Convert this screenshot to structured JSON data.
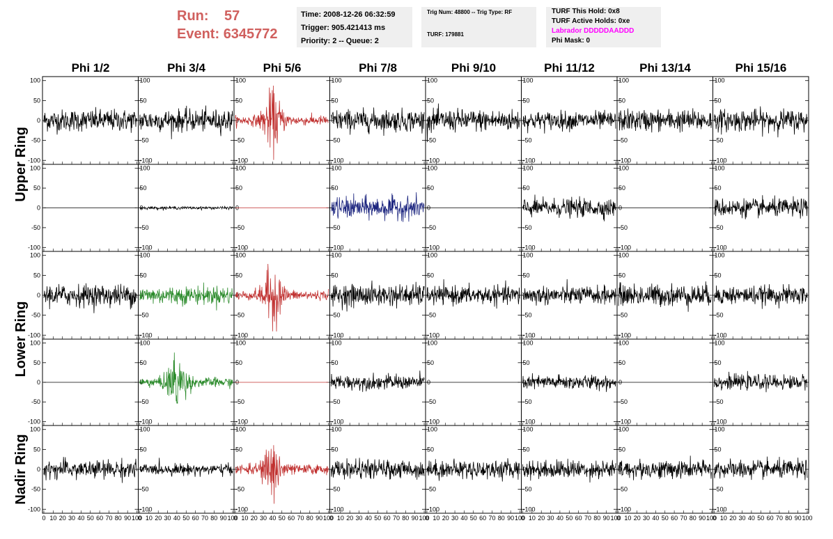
{
  "header": {
    "run_label": "Run:",
    "run_value": "57",
    "event_label": "Event:",
    "event_value": "6345772"
  },
  "info": {
    "time": "Time: 2008-12-26 06:32:59",
    "trigger": "Trigger: 905.421413 ms",
    "priority": "Priority: 2 -- Queue: 2",
    "trig_num": "Trig Num: 48800 -- Trig Type: RF",
    "turf": "TURF: 179881",
    "turf_this_hold": "TURF This Hold: 0x8",
    "turf_active_holds": "TURF Active Holds: 0xe",
    "labrador": "Labrador DDDDDAADDD",
    "phi_mask": "Phi Mask: 0"
  },
  "colors": {
    "red": "#c0302f",
    "green": "#2a8a2a",
    "blue": "#1a237e",
    "black": "#000000",
    "header_red": "#d0605e",
    "labrador": "#ff00ff"
  },
  "chart_data": {
    "type": "line",
    "columns": [
      "Phi 1/2",
      "Phi 3/4",
      "Phi 5/6",
      "Phi 7/8",
      "Phi 9/10",
      "Phi 11/12",
      "Phi 13/14",
      "Phi 15/16"
    ],
    "rings": [
      "Upper Ring",
      "Lower Ring",
      "Nadir Ring"
    ],
    "rows": [
      {
        "ring": "Upper Ring",
        "sub": 0
      },
      {
        "ring": "Upper Ring",
        "sub": 1
      },
      {
        "ring": "Lower Ring",
        "sub": 0
      },
      {
        "ring": "Lower Ring",
        "sub": 1
      },
      {
        "ring": "Nadir Ring",
        "sub": 0
      }
    ],
    "xlim": [
      0,
      100
    ],
    "ylim": [
      -110,
      110
    ],
    "x_ticks": [
      "0",
      "10",
      "20",
      "30",
      "40",
      "50",
      "60",
      "70",
      "80",
      "90",
      "100"
    ],
    "y_ticks": [
      "100",
      "50",
      "0",
      "-50",
      "-100"
    ],
    "panels": [
      [
        "black-30",
        "black-30",
        "red-burst",
        "black-30",
        "black-30",
        "black-25",
        "black-30",
        "black-30"
      ],
      [
        "flat-black",
        "black-4",
        "flat-red",
        "blue-30",
        "flat-black",
        "black-25",
        "flat-black",
        "black-25"
      ],
      [
        "black-30",
        "green-25",
        "red-burst",
        "black-30",
        "black-25",
        "black-25",
        "black-30",
        "black-25"
      ],
      [
        "flat-black",
        "green-burst",
        "flat-red",
        "black-20",
        "flat-black",
        "black-20",
        "flat-black",
        "black-20"
      ],
      [
        "black-25",
        "black-15",
        "red-burst",
        "black-25",
        "black-25",
        "black-25",
        "black-25",
        "black-25"
      ]
    ]
  }
}
